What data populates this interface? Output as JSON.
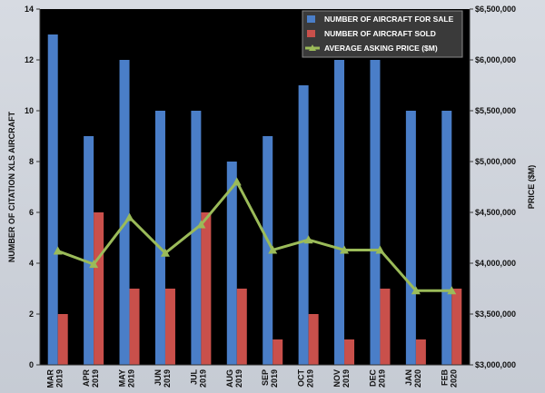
{
  "chart_data": {
    "type": "bar",
    "categories": [
      [
        "MAR",
        "2019"
      ],
      [
        "APR",
        "2019"
      ],
      [
        "MAY",
        "2019"
      ],
      [
        "JUN",
        "2019"
      ],
      [
        "JUL",
        "2019"
      ],
      [
        "AUG",
        "2019"
      ],
      [
        "SEP",
        "2019"
      ],
      [
        "OCT",
        "2019"
      ],
      [
        "NOV",
        "2019"
      ],
      [
        "DEC",
        "2019"
      ],
      [
        "JAN",
        "2020"
      ],
      [
        "FEB",
        "2020"
      ]
    ],
    "series": [
      {
        "name": "NUMBER OF AIRCRAFT FOR SALE",
        "type": "bar",
        "axis": "left",
        "color": "#4a7ec8",
        "values": [
          13,
          9,
          12,
          10,
          10,
          8,
          9,
          11,
          12,
          12,
          10,
          10
        ]
      },
      {
        "name": "NUMBER OF AIRCRAFT SOLD",
        "type": "bar",
        "axis": "left",
        "color": "#c9504b",
        "values": [
          2,
          6,
          3,
          3,
          6,
          3,
          1,
          2,
          1,
          3,
          1,
          3
        ]
      },
      {
        "name": "AVERAGE ASKING PRICE ($M)",
        "type": "line",
        "axis": "right",
        "color": "#9bbb59",
        "values": [
          4120000,
          3990000,
          4450000,
          4100000,
          4380000,
          4800000,
          4130000,
          4230000,
          4130000,
          4130000,
          3730000,
          3730000
        ]
      }
    ],
    "ylabel": "NUMBER OF CITATION XLS  AIRCRAFT",
    "ylim": [
      0,
      14
    ],
    "y_ticks": [
      "0",
      "2",
      "4",
      "6",
      "8",
      "10",
      "12",
      "14"
    ],
    "y2label": "PRICE ($M)",
    "y2lim": [
      3000000,
      6500000
    ],
    "y2_ticks": [
      "$3,000,000",
      "$3,500,000",
      "$4,000,000",
      "$4,500,000",
      "$5,000,000",
      "$5,500,000",
      "$6,000,000",
      "$6,500,000"
    ],
    "legend": "top-right",
    "grid": false,
    "plot_background": "#000000"
  }
}
